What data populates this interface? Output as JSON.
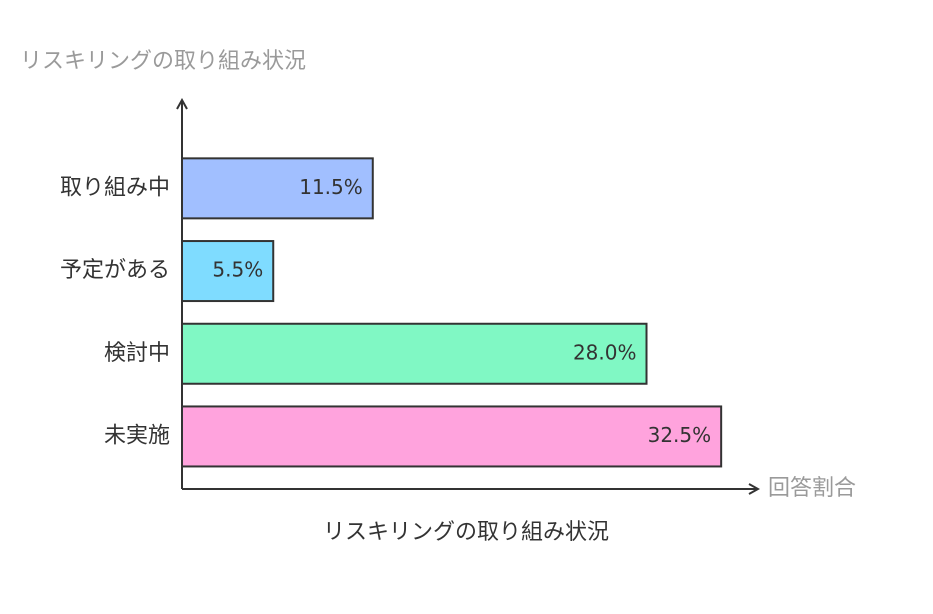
{
  "chart_data": {
    "type": "hbar",
    "ylabel": "リスキリングの取り組み状況",
    "xlabel": "回答割合",
    "title": "リスキリングの取り組み状況",
    "categories": [
      "取り組み中",
      "予定がある",
      "検討中",
      "未実施"
    ],
    "values": [
      11.5,
      5.5,
      28.0,
      32.5
    ],
    "value_labels": [
      "11.5%",
      "5.5%",
      "28.0%",
      "32.5%"
    ],
    "colors": [
      "#a1bfff",
      "#7fdcff",
      "#80f8c4",
      "#ffa3dd"
    ],
    "xlim": [
      0,
      34.6
    ]
  }
}
